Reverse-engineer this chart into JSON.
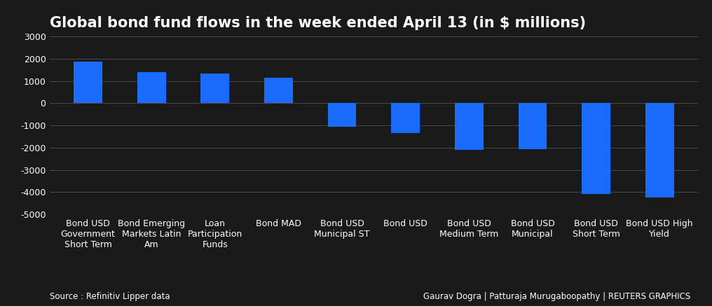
{
  "title": "Global bond fund flows in the week ended April 13 (in $ millions)",
  "categories": [
    "Bond USD\nGovernment\nShort Term",
    "Bond Emerging\nMarkets Latin\nAm",
    "Loan\nParticipation\nFunds",
    "Bond MAD",
    "Bond USD\nMunicipal ST",
    "Bond USD",
    "Bond USD\nMedium Term",
    "Bond USD\nMunicipal",
    "Bond USD\nShort Term",
    "Bond USD High\nYield"
  ],
  "values": [
    1880,
    1390,
    1330,
    1160,
    -1050,
    -1340,
    -2100,
    -2080,
    -4100,
    -4250
  ],
  "bar_color": "#1a6bff",
  "background_color": "#1a1a1a",
  "text_color": "#ffffff",
  "grid_color": "#4a4a4a",
  "ylim": [
    -5000,
    3000
  ],
  "yticks": [
    -5000,
    -4000,
    -3000,
    -2000,
    -1000,
    0,
    1000,
    2000,
    3000
  ],
  "source_text": "Source : Refinitiv Lipper data",
  "credit_text": "Gaurav Dogra | Patturaja Murugaboopathy | REUTERS GRAPHICS",
  "title_fontsize": 15,
  "tick_fontsize": 9,
  "source_fontsize": 8.5,
  "bar_width": 0.45
}
